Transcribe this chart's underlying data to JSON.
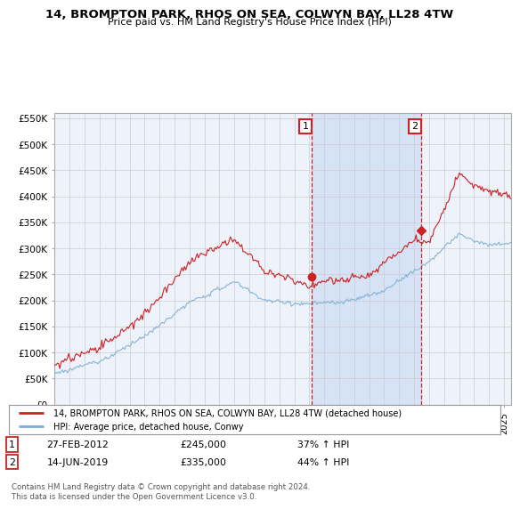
{
  "title": "14, BROMPTON PARK, RHOS ON SEA, COLWYN BAY, LL28 4TW",
  "subtitle": "Price paid vs. HM Land Registry's House Price Index (HPI)",
  "legend_line1": "14, BROMPTON PARK, RHOS ON SEA, COLWYN BAY, LL28 4TW (detached house)",
  "legend_line2": "HPI: Average price, detached house, Conwy",
  "annotation1_label": "1",
  "annotation1_date": "27-FEB-2012",
  "annotation1_price": "£245,000",
  "annotation1_hpi": "37% ↑ HPI",
  "annotation2_label": "2",
  "annotation2_date": "14-JUN-2019",
  "annotation2_price": "£335,000",
  "annotation2_hpi": "44% ↑ HPI",
  "footer": "Contains HM Land Registry data © Crown copyright and database right 2024.\nThis data is licensed under the Open Government Licence v3.0.",
  "hpi_color": "#7bafd4",
  "price_color": "#cc2222",
  "annotation_color": "#cc2222",
  "background_color": "#ffffff",
  "grid_color": "#cccccc",
  "plot_bg_color": "#eef2fb",
  "shade_color": "#d0dff5",
  "ylim": [
    0,
    560000
  ],
  "yticks": [
    0,
    50000,
    100000,
    150000,
    200000,
    250000,
    300000,
    350000,
    400000,
    450000,
    500000,
    550000
  ],
  "year_start": 1995,
  "year_end": 2025,
  "sale1_year": 2012.15,
  "sale1_price": 245000,
  "sale2_year": 2019.45,
  "sale2_price": 335000
}
